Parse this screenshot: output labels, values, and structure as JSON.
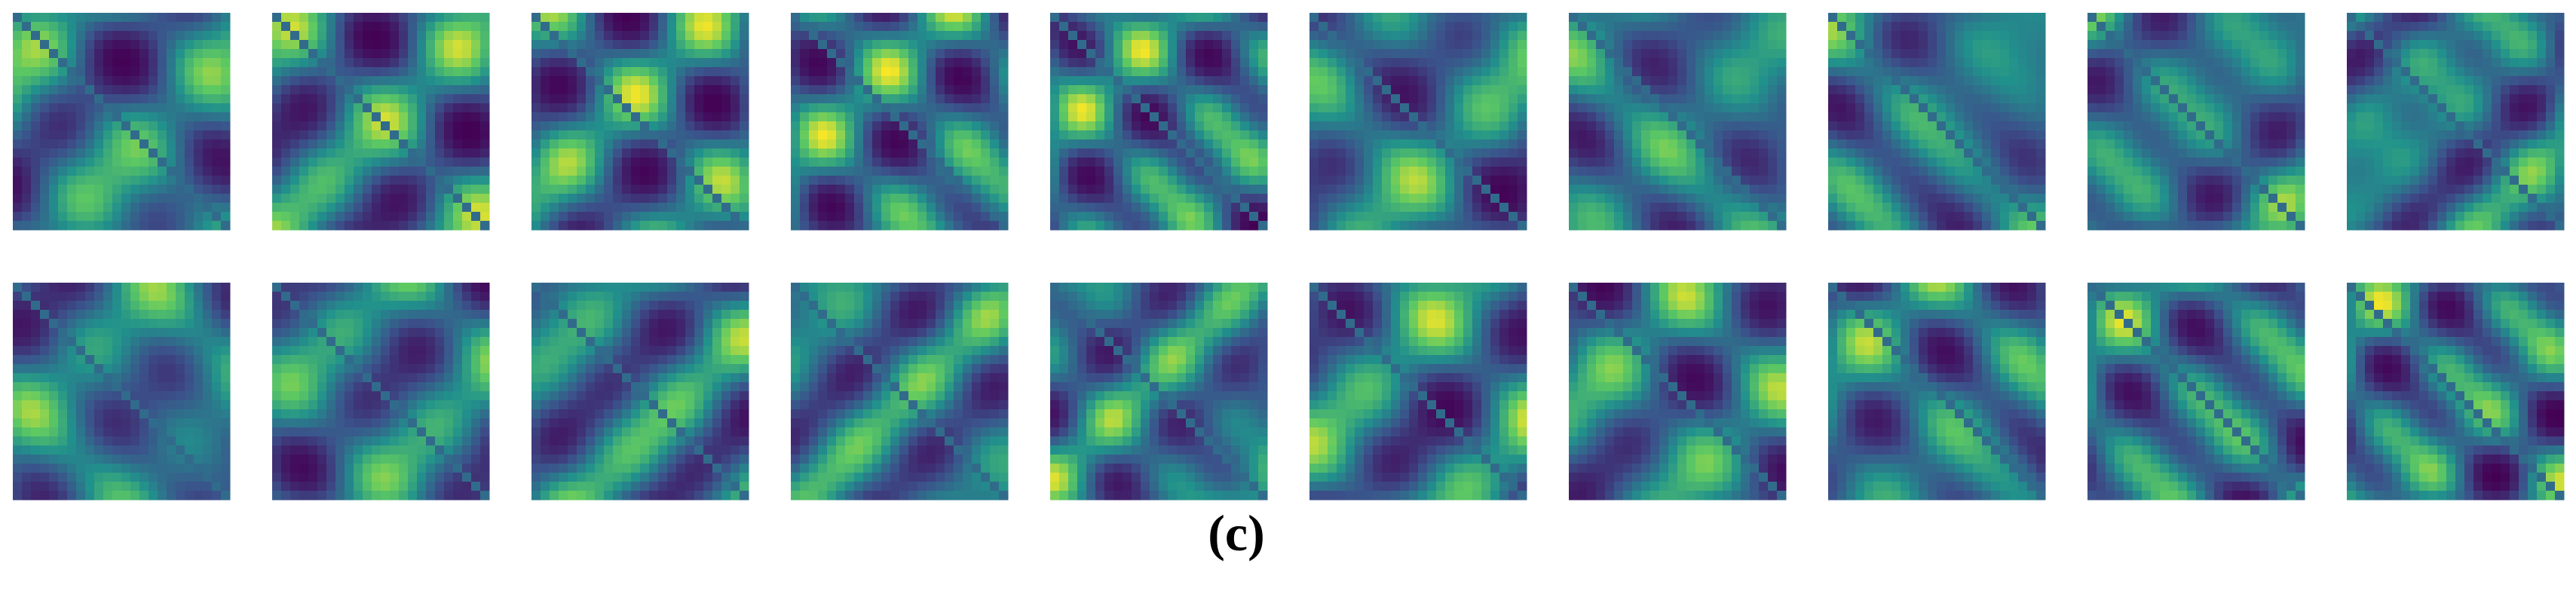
{
  "figure": {
    "caption": "(c)"
  }
}
